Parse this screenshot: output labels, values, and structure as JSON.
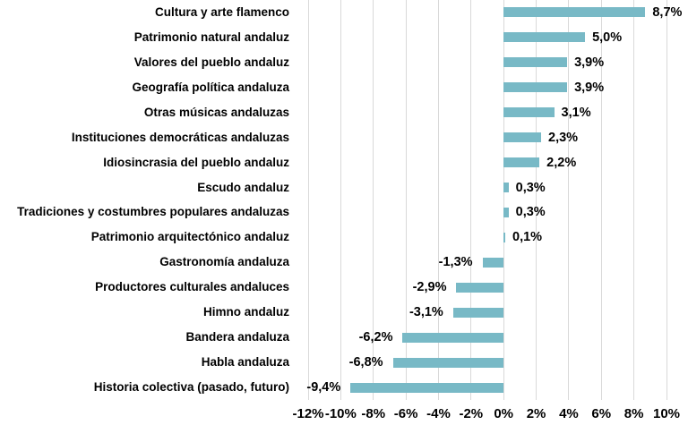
{
  "chart_data": {
    "type": "bar",
    "orientation": "horizontal",
    "title": "",
    "categories": [
      "Cultura y arte flamenco",
      "Patrimonio natural andaluz",
      "Valores del pueblo andaluz",
      "Geografía política andaluza",
      "Otras músicas andaluzas",
      "Instituciones democráticas andaluzas",
      "Idiosincrasia del pueblo andaluz",
      "Escudo andaluz",
      "Tradiciones y costumbres populares andaluzas",
      "Patrimonio arquitectónico andaluz",
      "Gastronomía andaluza",
      "Productores culturales andaluces",
      "Himno andaluz",
      "Bandera andaluza",
      "Habla andaluza",
      "Historia colectiva (pasado, futuro)"
    ],
    "values": [
      8.7,
      5.0,
      3.9,
      3.9,
      3.1,
      2.3,
      2.2,
      0.3,
      0.3,
      0.1,
      -1.3,
      -2.9,
      -3.1,
      -6.2,
      -6.8,
      -9.4
    ],
    "value_labels": [
      "8,7%",
      "5,0%",
      "3,9%",
      "3,9%",
      "3,1%",
      "2,3%",
      "2,2%",
      "0,3%",
      "0,3%",
      "0,1%",
      "-1,3%",
      "-2,9%",
      "-3,1%",
      "-6,2%",
      "-6,8%",
      "-9,4%"
    ],
    "xlabel": "",
    "ylabel": "",
    "xlim": [
      -12,
      10
    ],
    "x_tick_step": 2,
    "x_tick_labels": [
      "-12%",
      "-10%",
      "-8%",
      "-6%",
      "-4%",
      "-2%",
      "0%",
      "2%",
      "4%",
      "6%",
      "8%",
      "10%"
    ],
    "grid": true,
    "legend": false,
    "colors": {
      "bar": "#78b9c6",
      "gridline": "#d9d9d9",
      "text": "#000000",
      "background": "#ffffff"
    }
  }
}
